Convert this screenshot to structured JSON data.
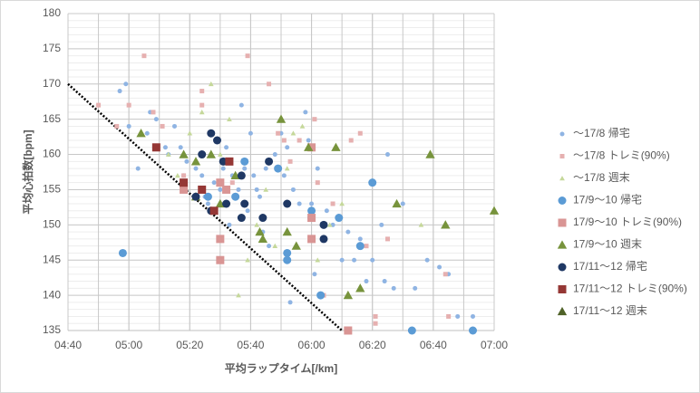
{
  "chart_data": {
    "type": "scatter",
    "x_label": "平均ラップタイム[/km]",
    "y_label": "平均心拍数[bpm]",
    "xlim": [
      280,
      420
    ],
    "ylim": [
      135,
      180
    ],
    "xticks": [
      {
        "value": 280,
        "label": "04:40"
      },
      {
        "value": 300,
        "label": "05:00"
      },
      {
        "value": 320,
        "label": "05:20"
      },
      {
        "value": 340,
        "label": "05:40"
      },
      {
        "value": 360,
        "label": "06:00"
      },
      {
        "value": 380,
        "label": "06:20"
      },
      {
        "value": 400,
        "label": "06:40"
      },
      {
        "value": 420,
        "label": "07:00"
      }
    ],
    "yticks": [
      135,
      140,
      145,
      150,
      155,
      160,
      165,
      170,
      175,
      180
    ],
    "grid": true,
    "xminor_step": 10,
    "yminor_step": 1,
    "legend": "right",
    "reference_line": {
      "x": [
        280,
        370
      ],
      "values": [
        170,
        135
      ],
      "color": "#000000",
      "style": "dotted"
    },
    "series": [
      {
        "name": "～17/8 帰宅",
        "color": "#8fb4e3",
        "marker": "circle",
        "size": "small",
        "x": [
          299,
          297,
          300,
          303,
          306,
          307,
          309,
          312,
          313,
          315,
          317,
          318,
          319,
          322,
          324,
          325,
          326,
          328,
          330,
          331,
          332,
          333,
          334,
          336,
          337,
          338,
          339,
          340,
          341,
          342,
          343,
          344,
          345,
          346,
          348,
          350,
          351,
          352,
          353,
          354,
          356,
          358,
          359,
          360,
          361,
          362,
          365,
          367,
          370,
          372,
          374,
          376,
          378,
          380,
          383,
          384,
          385,
          387,
          390,
          394,
          398,
          402,
          405,
          408,
          413
        ],
        "values": [
          170,
          169,
          164,
          158,
          163,
          166,
          165,
          161,
          160,
          164,
          161,
          157,
          159,
          158,
          157,
          154,
          153,
          156,
          155,
          158,
          161,
          150,
          157,
          155,
          167,
          158,
          152,
          163,
          157,
          155,
          154,
          149,
          158,
          147,
          160,
          163,
          157,
          161,
          139,
          155,
          153,
          166,
          162,
          153,
          143,
          158,
          152,
          150,
          145,
          149,
          145,
          148,
          142,
          145,
          150,
          142,
          160,
          141,
          153,
          141,
          145,
          144,
          143,
          137,
          137
        ]
      },
      {
        "name": "～17/8 トレミ(90%)",
        "color": "#e6b0b0",
        "marker": "square",
        "size": "small",
        "x": [
          290,
          296,
          300,
          305,
          308,
          311,
          318,
          324,
          324,
          327,
          328,
          334,
          339,
          346,
          349,
          351,
          353,
          356,
          360,
          361,
          362,
          364,
          367,
          373,
          376,
          378,
          381,
          381,
          385,
          404,
          405
        ],
        "values": [
          167,
          164,
          167,
          174,
          166,
          164,
          157,
          169,
          167,
          163,
          152,
          156,
          174,
          170,
          163,
          162,
          159,
          162,
          161,
          165,
          156,
          140,
          153,
          162,
          163,
          147,
          137,
          136,
          148,
          143,
          137
        ]
      },
      {
        "name": "～17/8 週末",
        "color": "#c5d89a",
        "marker": "triangle",
        "size": "small",
        "x": [
          313,
          316,
          320,
          324,
          327,
          330,
          333,
          336,
          339,
          342,
          345,
          348,
          352,
          354,
          357,
          362,
          366,
          370,
          396
        ],
        "values": [
          160,
          157,
          163,
          166,
          170,
          160,
          165,
          140,
          145,
          150,
          155,
          147,
          158,
          163,
          164,
          145,
          150,
          153,
          150
        ]
      },
      {
        "name": "17/9～10 帰宅",
        "color": "#5b9bd5",
        "marker": "circle",
        "size": "large",
        "x": [
          298,
          338,
          349,
          326,
          335,
          369,
          360,
          380,
          376,
          352,
          352,
          363,
          393,
          413,
          360
        ],
        "values": [
          146,
          159,
          158,
          154,
          154,
          151,
          151,
          156,
          147,
          146,
          145,
          140,
          135,
          135,
          152
        ]
      },
      {
        "name": "17/9～10 トレミ(90%)",
        "color": "#d99594",
        "marker": "square",
        "size": "large",
        "x": [
          360,
          330,
          332,
          360,
          360,
          330,
          330,
          372,
          318
        ],
        "values": [
          161,
          156,
          155,
          151,
          148,
          148,
          145,
          135,
          155
        ]
      },
      {
        "name": "17/9～10 週末",
        "color": "#77933c",
        "marker": "triangle",
        "size": "large",
        "x": [
          304,
          318,
          327,
          335,
          322,
          322,
          330,
          343,
          344,
          350,
          359,
          368,
          388,
          399,
          404,
          420,
          372,
          376,
          355,
          352
        ],
        "values": [
          163,
          160,
          160,
          157,
          159,
          154,
          153,
          149,
          148,
          165,
          161,
          161,
          153,
          160,
          150,
          152,
          140,
          141,
          147,
          149
        ]
      },
      {
        "name": "17/11～12 帰宅",
        "color": "#1f3864",
        "marker": "circle",
        "size": "large",
        "x": [
          327,
          329,
          324,
          331,
          337,
          346,
          322,
          332,
          338,
          352,
          327,
          337,
          344,
          364,
          364
        ],
        "values": [
          163,
          162,
          160,
          159,
          157,
          159,
          154,
          153,
          153,
          153,
          152,
          151,
          151,
          150,
          148
        ]
      },
      {
        "name": "17/11～12 トレミ(90%)",
        "color": "#953735",
        "marker": "square",
        "size": "large",
        "x": [
          309,
          318,
          324,
          328,
          333
        ],
        "values": [
          161,
          156,
          155,
          152,
          159
        ]
      },
      {
        "name": "17/11～12 週末",
        "color": "#4f6228",
        "marker": "triangle",
        "size": "large",
        "x": [],
        "values": []
      }
    ]
  }
}
